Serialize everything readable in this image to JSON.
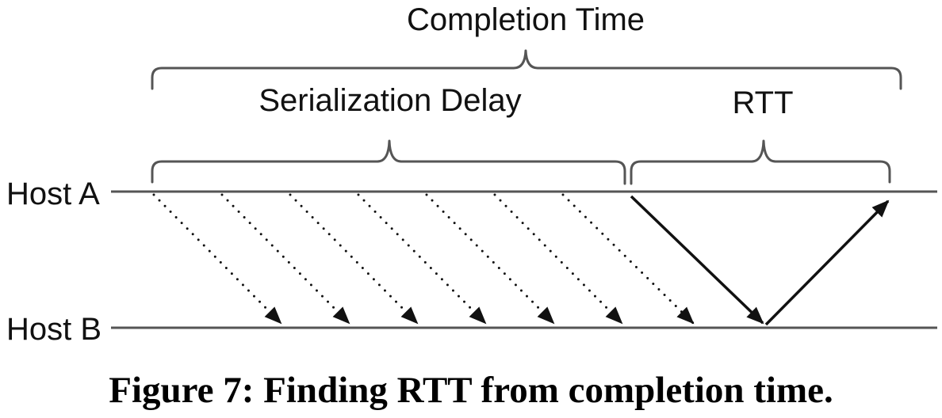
{
  "labels": {
    "completion_time": "Completion Time",
    "serialization_delay": "Serialization Delay",
    "rtt": "RTT",
    "host_a": "Host A",
    "host_b": "Host B"
  },
  "caption": "Figure 7: Finding RTT from completion time.",
  "colors": {
    "line": "#555555",
    "arrow": "#111111",
    "text": "#111111"
  }
}
